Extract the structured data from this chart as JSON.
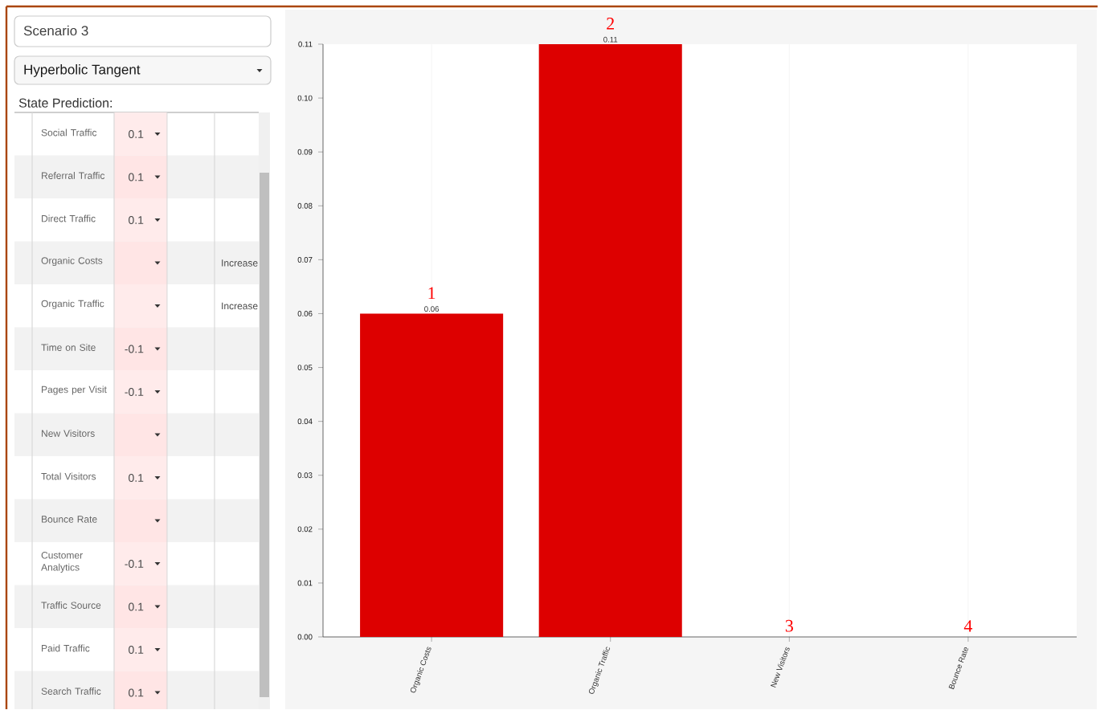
{
  "chart_data": [
    {
      "type": "other",
      "title": "Scenario 3",
      "subtitle": "Hyperbolic Tangent",
      "annotations": [
        "State Prediction:"
      ],
      "categories": [
        "Social Traffic",
        "Referral Traffic",
        "Direct Traffic",
        "Organic Costs",
        "Organic Traffic",
        "Time on Site",
        "Pages per Visit",
        "New Visitors",
        "Total Visitors",
        "Bounce Rate",
        "Customer Analytics",
        "Traffic Source",
        "Paid Traffic",
        "Search Traffic"
      ],
      "value_labels": [
        "0.1",
        "0.1",
        "0.1",
        "Increase",
        "Increase",
        "-0.1",
        "-0.1",
        null,
        "0.1",
        null,
        "-0.1",
        "0.1",
        "0.1",
        "0.1"
      ]
    },
    {
      "type": "bar",
      "categories": [
        "Organic Costs",
        "Organic Traffic",
        "New Visitors",
        "Bounce Rate"
      ],
      "values": [
        0.06,
        0.11,
        0,
        0
      ],
      "color": "#dd0000",
      "value_labels": [
        "0.06",
        "0.11",
        null,
        null
      ],
      "ylim": [
        0,
        0.11
      ],
      "yticks": [
        {
          "value": 0,
          "label": "0.00"
        },
        {
          "value": 0.01,
          "label": "0.01"
        },
        {
          "value": 0.02,
          "label": "0.02"
        },
        {
          "value": 0.03,
          "label": "0.03"
        },
        {
          "value": 0.04,
          "label": "0.04"
        },
        {
          "value": 0.05,
          "label": "0.05"
        },
        {
          "value": 0.06,
          "label": "0.06"
        },
        {
          "value": 0.07,
          "label": "0.07"
        },
        {
          "value": 0.08,
          "label": "0.08"
        },
        {
          "value": 0.09,
          "label": "0.09"
        },
        {
          "value": 0.1,
          "label": "0.10"
        },
        {
          "value": 0.11,
          "label": "0.11"
        }
      ],
      "grid": "x",
      "annotations": [
        {
          "text": "1",
          "x": "Organic Costs",
          "y": 0.06
        },
        {
          "text": "2",
          "x": "Organic Traffic",
          "y": 0.11
        },
        {
          "text": "3",
          "x": "New Visitors",
          "y": 0
        },
        {
          "text": "4",
          "x": "Bounce Rate",
          "y": 0
        }
      ]
    }
  ]
}
